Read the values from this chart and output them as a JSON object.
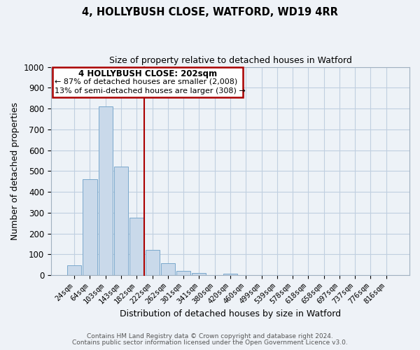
{
  "title": "4, HOLLYBUSH CLOSE, WATFORD, WD19 4RR",
  "subtitle": "Size of property relative to detached houses in Watford",
  "xlabel": "Distribution of detached houses by size in Watford",
  "ylabel": "Number of detached properties",
  "bar_labels": [
    "24sqm",
    "64sqm",
    "103sqm",
    "143sqm",
    "182sqm",
    "222sqm",
    "262sqm",
    "301sqm",
    "341sqm",
    "380sqm",
    "420sqm",
    "460sqm",
    "499sqm",
    "539sqm",
    "578sqm",
    "618sqm",
    "658sqm",
    "697sqm",
    "737sqm",
    "776sqm",
    "816sqm"
  ],
  "bar_values": [
    46,
    462,
    810,
    522,
    275,
    122,
    57,
    22,
    12,
    0,
    8,
    0,
    0,
    0,
    0,
    0,
    0,
    0,
    0,
    0,
    0
  ],
  "bar_color": "#c9d9ea",
  "bar_edge_color": "#7aa8cc",
  "property_line_label": "4 HOLLYBUSH CLOSE: 202sqm",
  "annotation_line1": "← 87% of detached houses are smaller (2,008)",
  "annotation_line2": "13% of semi-detached houses are larger (308) →",
  "red_line_color": "#aa0000",
  "box_edge_color": "#aa0000",
  "ylim": [
    0,
    1000
  ],
  "yticks": [
    0,
    100,
    200,
    300,
    400,
    500,
    600,
    700,
    800,
    900,
    1000
  ],
  "footer1": "Contains HM Land Registry data © Crown copyright and database right 2024.",
  "footer2": "Contains public sector information licensed under the Open Government Licence v3.0.",
  "bg_color": "#eef2f7",
  "plot_bg_color": "#edf2f7",
  "grid_color": "#c0cfe0"
}
